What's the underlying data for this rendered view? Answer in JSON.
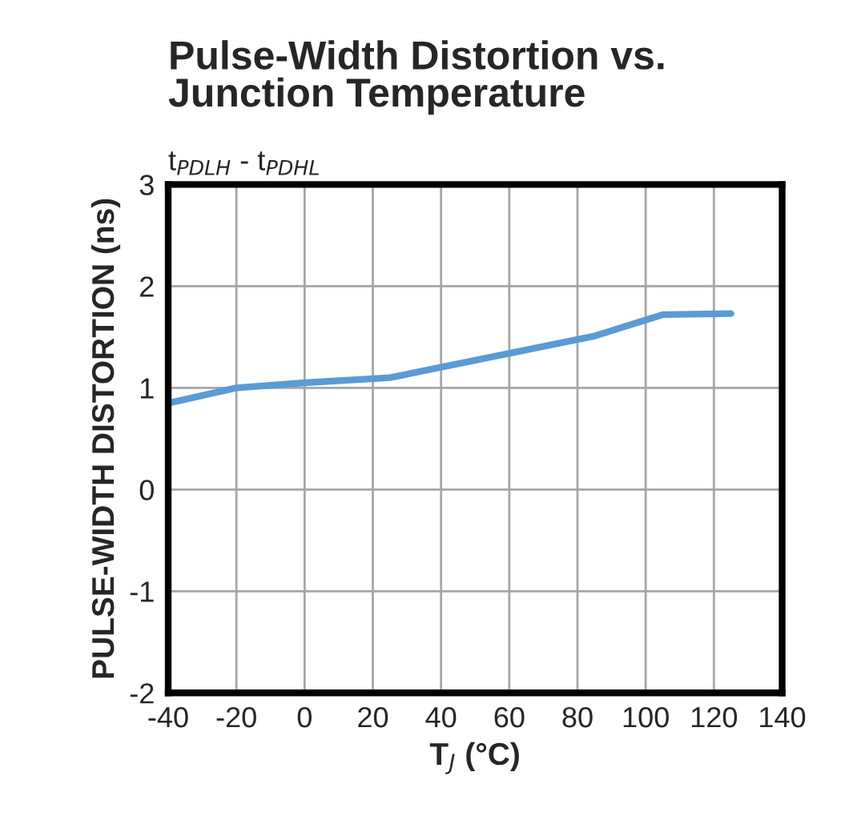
{
  "chart_data": {
    "type": "line",
    "title": "Pulse-Width Distortion vs.\nJunction Temperature",
    "subtitle": "t$_{PDLH}$ - t$_{PDHL}$",
    "xlabel": "T$_{J}$ (°C)",
    "ylabel": "PULSE-WIDTH DISTORTION (ns)",
    "series": [
      {
        "color": "#5b9bd5",
        "x": [
          -40,
          -20,
          0,
          25,
          85,
          105,
          125
        ],
        "values": [
          0.85,
          1.0,
          1.05,
          1.1,
          1.51,
          1.72,
          1.73
        ]
      }
    ],
    "xlim": [
      -40,
      140
    ],
    "xticks": [
      -40,
      -20,
      0,
      20,
      40,
      60,
      80,
      100,
      120,
      140
    ],
    "ylim": [
      -2,
      3
    ],
    "yticks": [
      -2,
      -1,
      0,
      1,
      2,
      3
    ],
    "grid": true,
    "marker": "none",
    "line_style": "solid"
  }
}
